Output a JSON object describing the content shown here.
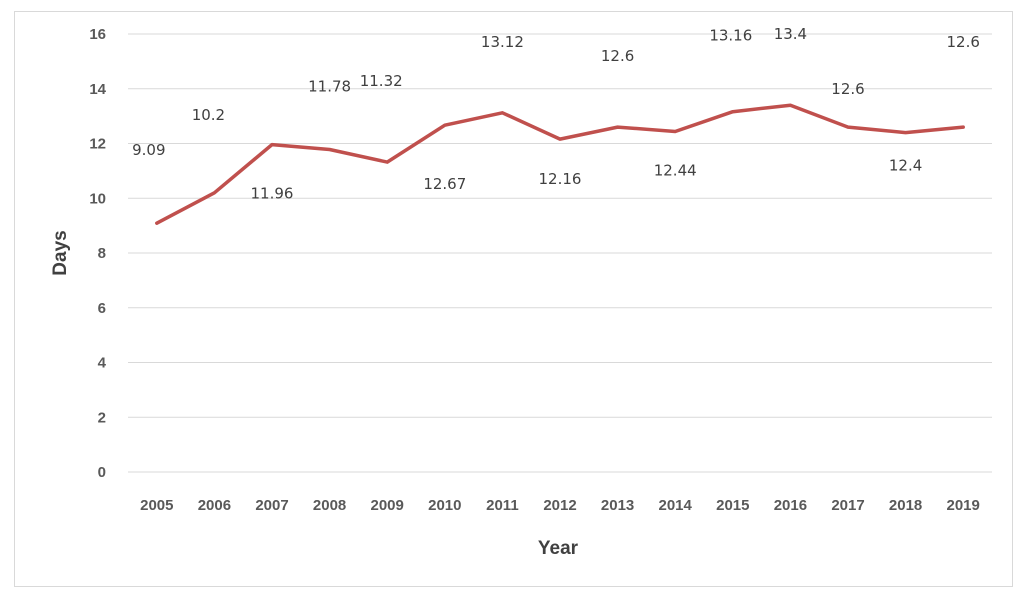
{
  "chart_data": {
    "type": "line",
    "title": "",
    "xlabel": "Year",
    "ylabel": "Days",
    "categories": [
      "2005",
      "2006",
      "2007",
      "2008",
      "2009",
      "2010",
      "2011",
      "2012",
      "2013",
      "2014",
      "2015",
      "2016",
      "2017",
      "2018",
      "2019"
    ],
    "series": [
      {
        "values": [
          9.09,
          10.2,
          11.96,
          11.78,
          11.32,
          12.67,
          13.12,
          12.16,
          12.6,
          12.44,
          13.16,
          13.4,
          12.6,
          12.4,
          12.6
        ],
        "labels": [
          "9.09",
          "10.2",
          "11.96",
          "11.78",
          "11.32",
          "12.67",
          "13.12",
          "12.16",
          "12.6",
          "12.44",
          "13.16",
          "13.4",
          "12.6",
          "12.4",
          "12.6"
        ],
        "color": "#c0504d"
      }
    ],
    "yticks": [
      "0",
      "2",
      "4",
      "6",
      "8",
      "10",
      "12",
      "14",
      "16"
    ],
    "ylim": [
      0,
      16
    ],
    "grid": true,
    "legend": "none"
  }
}
